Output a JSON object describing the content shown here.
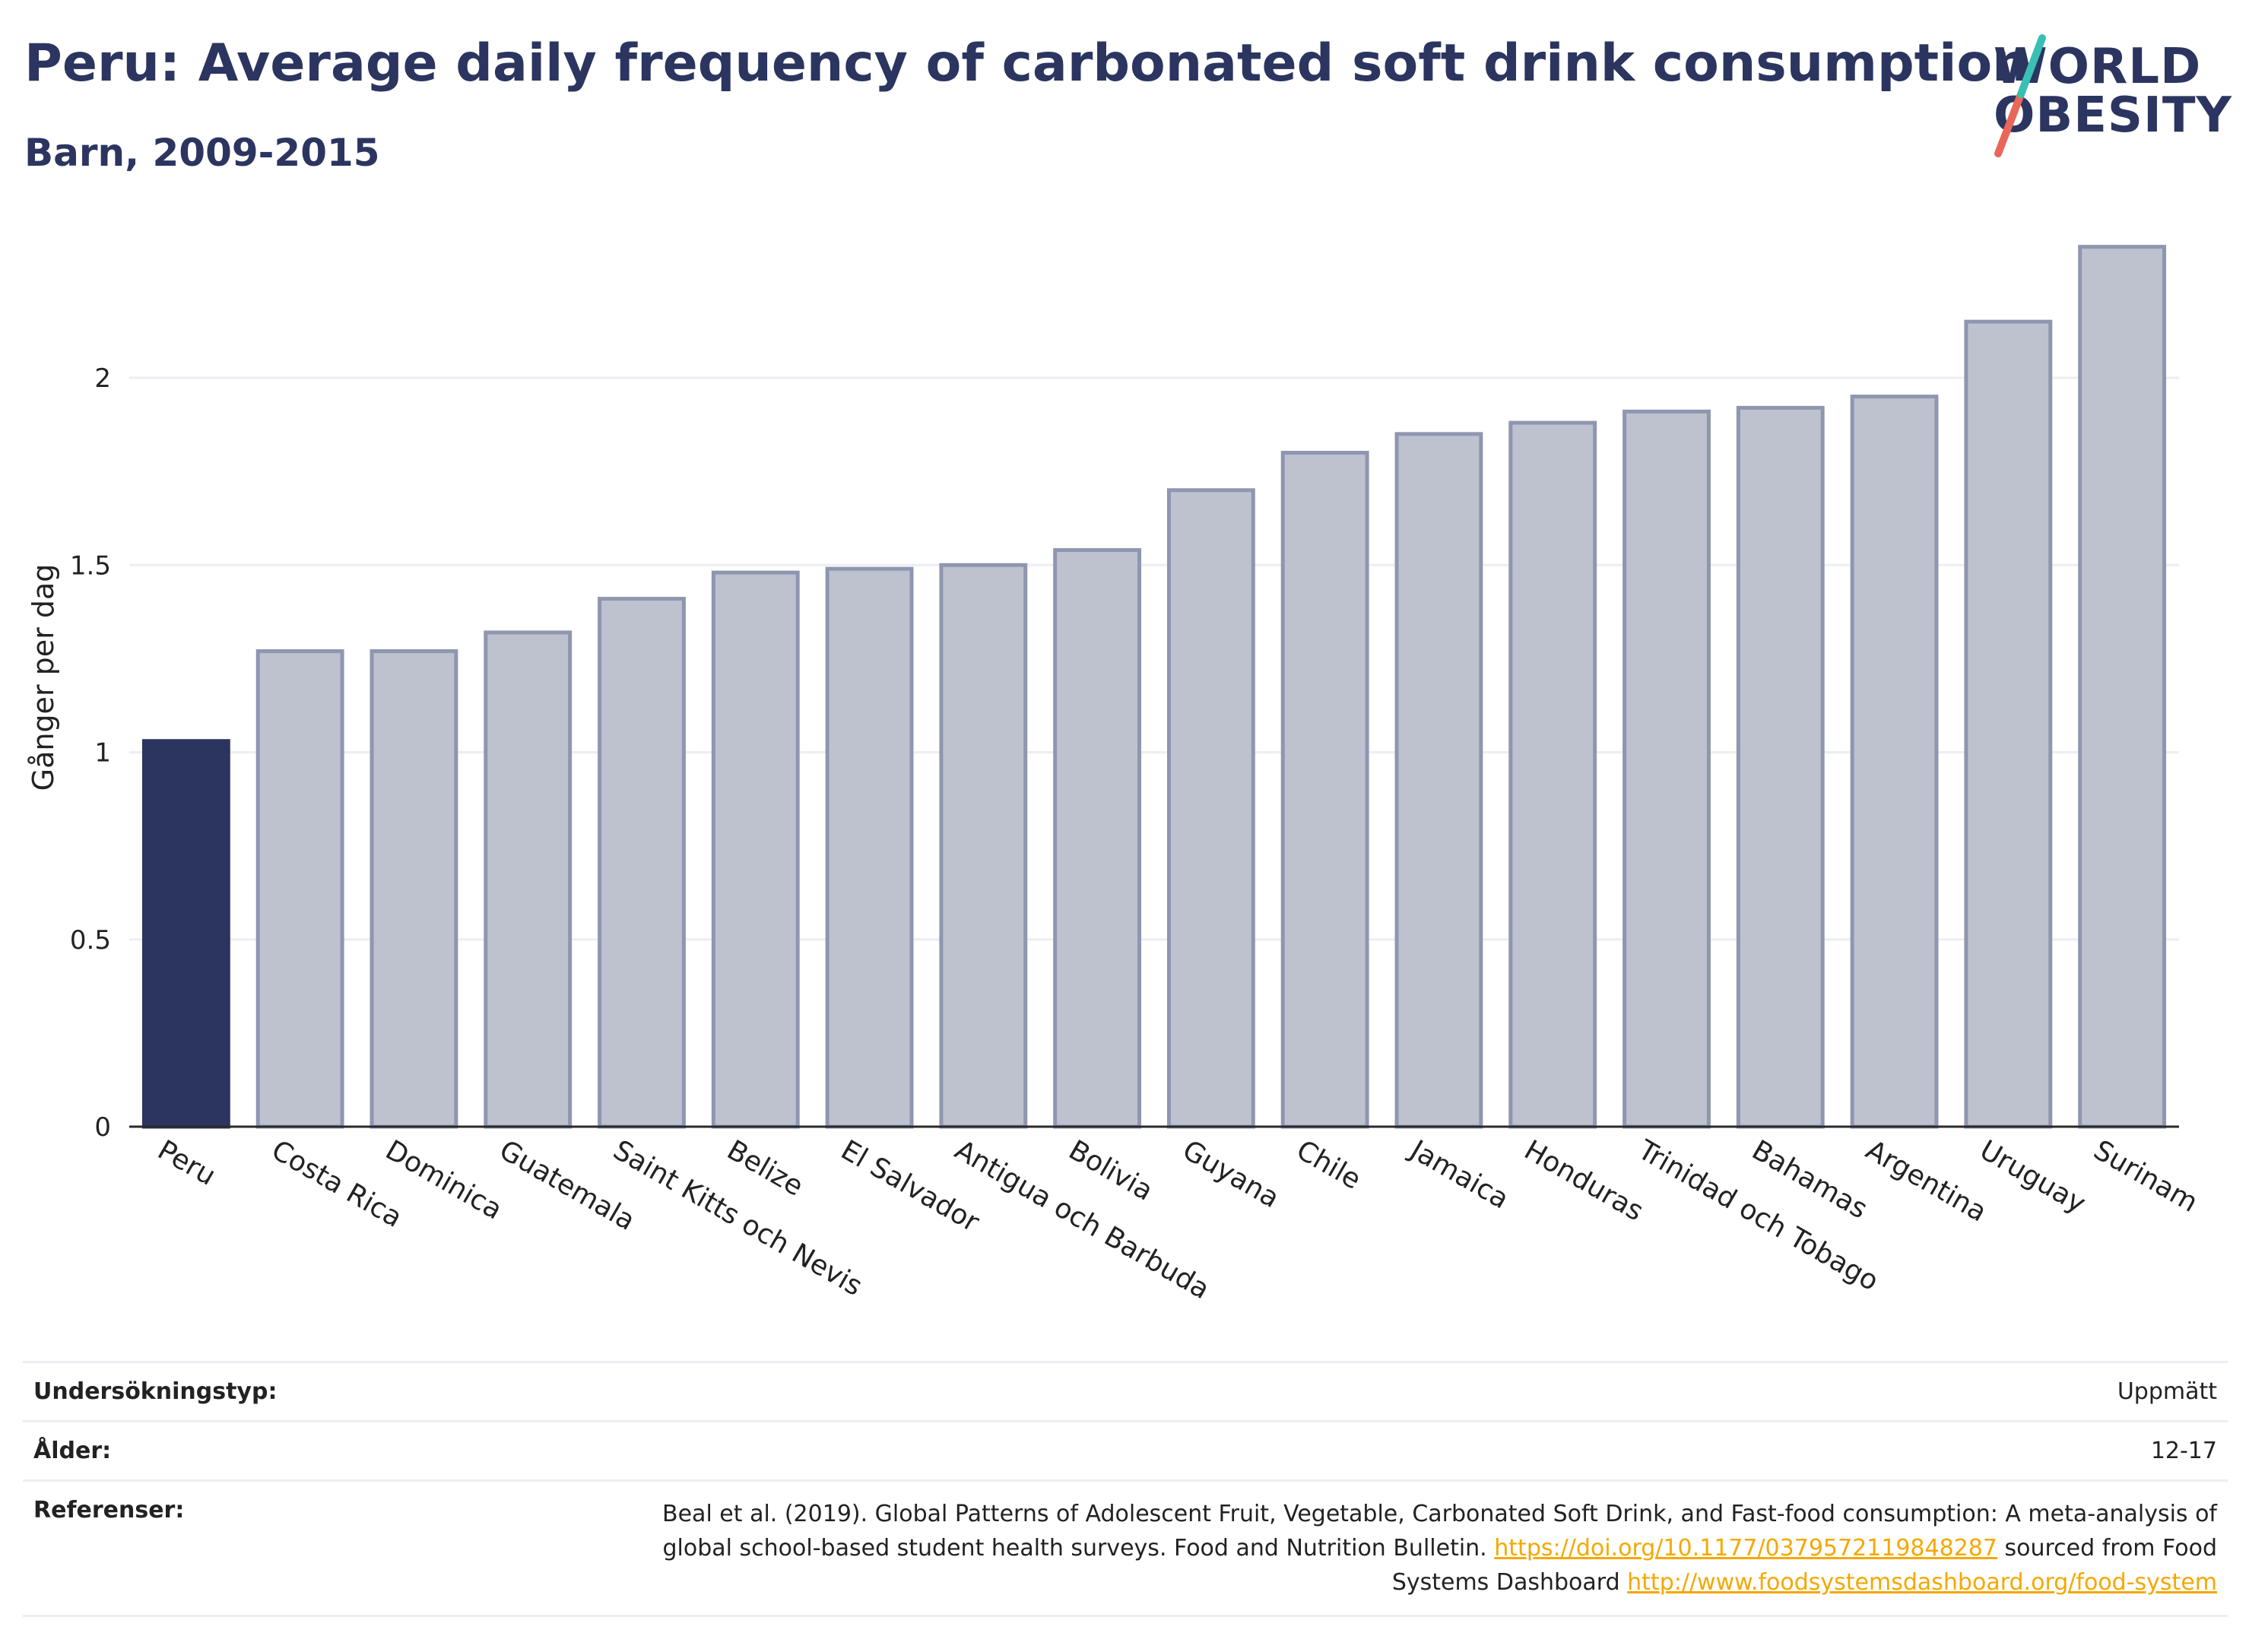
{
  "header": {
    "title": "Peru: Average daily frequency of carbonated soft drink consumption",
    "subtitle": "Barn, 2009-2015"
  },
  "logo": {
    "line1": "WORLD",
    "line2": "OBESITY"
  },
  "colors": {
    "highlight": "#2b3560",
    "bar": "#bec2cf",
    "bar_border": "#8e96b0",
    "text": "#2b3560",
    "link": "#f5a800"
  },
  "chart_data": {
    "type": "bar",
    "title": "Peru: Average daily frequency of carbonated soft drink consumption",
    "subtitle": "Barn, 2009-2015",
    "xlabel": "",
    "ylabel": "Gånger per dag",
    "ylim": [
      0,
      2.4
    ],
    "yticks": [
      0,
      0.5,
      1,
      1.5,
      2
    ],
    "ytick_labels": [
      "0",
      "0.5",
      "1",
      "1.5",
      "2"
    ],
    "grid": true,
    "highlight": "Peru",
    "categories": [
      "Peru",
      "Costa Rica",
      "Dominica",
      "Guatemala",
      "Saint Kitts och Nevis",
      "Belize",
      "El Salvador",
      "Antigua och Barbuda",
      "Bolivia",
      "Guyana",
      "Chile",
      "Jamaica",
      "Honduras",
      "Trinidad och Tobago",
      "Bahamas",
      "Argentina",
      "Uruguay",
      "Surinam"
    ],
    "values": [
      1.03,
      1.27,
      1.27,
      1.32,
      1.41,
      1.48,
      1.49,
      1.5,
      1.54,
      1.7,
      1.8,
      1.85,
      1.88,
      1.91,
      1.92,
      1.95,
      2.15,
      2.35
    ]
  },
  "info": {
    "survey_label": "Undersökningstyp:",
    "survey_value": "Uppmätt",
    "age_label": "Ålder:",
    "age_value": "12-17",
    "ref_label": "Referenser:",
    "ref_text1": "Beal et al. (2019). Global Patterns of Adolescent Fruit, Vegetable, Carbonated Soft Drink, and Fast-food consumption: A meta-analysis of global school-based student health surveys. Food and Nutrition Bulletin.",
    "ref_link1": "https://doi.org/10.1177/0379572119848287",
    "ref_text2": "sourced from Food Systems Dashboard",
    "ref_link2": "http://www.foodsystemsdashboard.org/food-system"
  }
}
